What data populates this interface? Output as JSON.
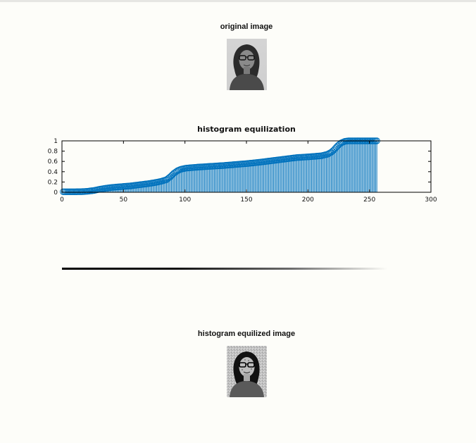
{
  "figure": {
    "original_title": "original image",
    "equalized_title": "histogram equilized image",
    "grayscale_bar": "black-to-white gradient colorbar (no labels)"
  },
  "colors": {
    "stem": "#0072bd",
    "background": "#fdfdf9",
    "axes": "#000000"
  },
  "chart_data": {
    "type": "stem",
    "title": "histogram equilization",
    "xlabel": "",
    "ylabel": "",
    "xlim": [
      0,
      300
    ],
    "ylim": [
      0,
      1
    ],
    "xticks": [
      "0",
      "50",
      "100",
      "150",
      "200",
      "250",
      "300"
    ],
    "yticks": [
      "0",
      "0.2",
      "0.4",
      "0.6",
      "0.8",
      "1"
    ],
    "grid": false,
    "marker": "circle",
    "series": [
      {
        "x_range": [
          0,
          255
        ],
        "cdf_anchors": [
          [
            0,
            0.01
          ],
          [
            10,
            0.01
          ],
          [
            15,
            0.012
          ],
          [
            20,
            0.02
          ],
          [
            25,
            0.035
          ],
          [
            30,
            0.06
          ],
          [
            35,
            0.08
          ],
          [
            40,
            0.095
          ],
          [
            45,
            0.105
          ],
          [
            50,
            0.115
          ],
          [
            55,
            0.125
          ],
          [
            60,
            0.14
          ],
          [
            65,
            0.155
          ],
          [
            70,
            0.17
          ],
          [
            75,
            0.19
          ],
          [
            80,
            0.215
          ],
          [
            84,
            0.245
          ],
          [
            87,
            0.3
          ],
          [
            90,
            0.37
          ],
          [
            93,
            0.42
          ],
          [
            96,
            0.45
          ],
          [
            100,
            0.47
          ],
          [
            110,
            0.49
          ],
          [
            120,
            0.505
          ],
          [
            130,
            0.52
          ],
          [
            140,
            0.54
          ],
          [
            150,
            0.56
          ],
          [
            160,
            0.585
          ],
          [
            170,
            0.615
          ],
          [
            180,
            0.645
          ],
          [
            190,
            0.675
          ],
          [
            200,
            0.69
          ],
          [
            210,
            0.71
          ],
          [
            215,
            0.74
          ],
          [
            218,
            0.78
          ],
          [
            220,
            0.82
          ],
          [
            223,
            0.9
          ],
          [
            226,
            0.96
          ],
          [
            229,
            0.99
          ],
          [
            232,
            1.0
          ],
          [
            255,
            1.0
          ]
        ]
      }
    ]
  }
}
